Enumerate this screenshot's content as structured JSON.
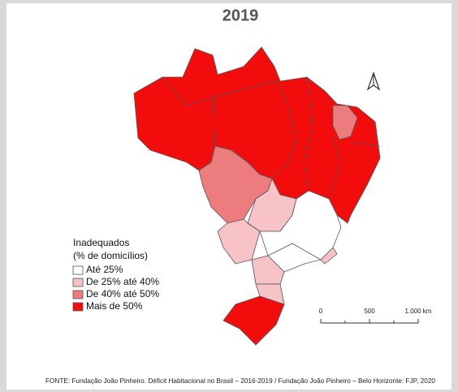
{
  "title": "2019",
  "legend": {
    "title": "Inadequados",
    "subtitle": "(% de domicílios)",
    "items": [
      {
        "label": "Até 25%",
        "color": "#ffffff"
      },
      {
        "label": "De 25% até 40%",
        "color": "#f7c3c6"
      },
      {
        "label": "De 40% até 50%",
        "color": "#ec7c7e"
      },
      {
        "label": "Mais de 50%",
        "color": "#f20c0c"
      }
    ]
  },
  "scale": {
    "labels": [
      "0",
      "500",
      "1.000 km"
    ]
  },
  "source": "FONTE: Fundação João Pinheiro. Déficit Habitacional no Brasil – 2016-2019 / Fundação João Pinheiro – Belo Horizonte: FJP, 2020"
}
